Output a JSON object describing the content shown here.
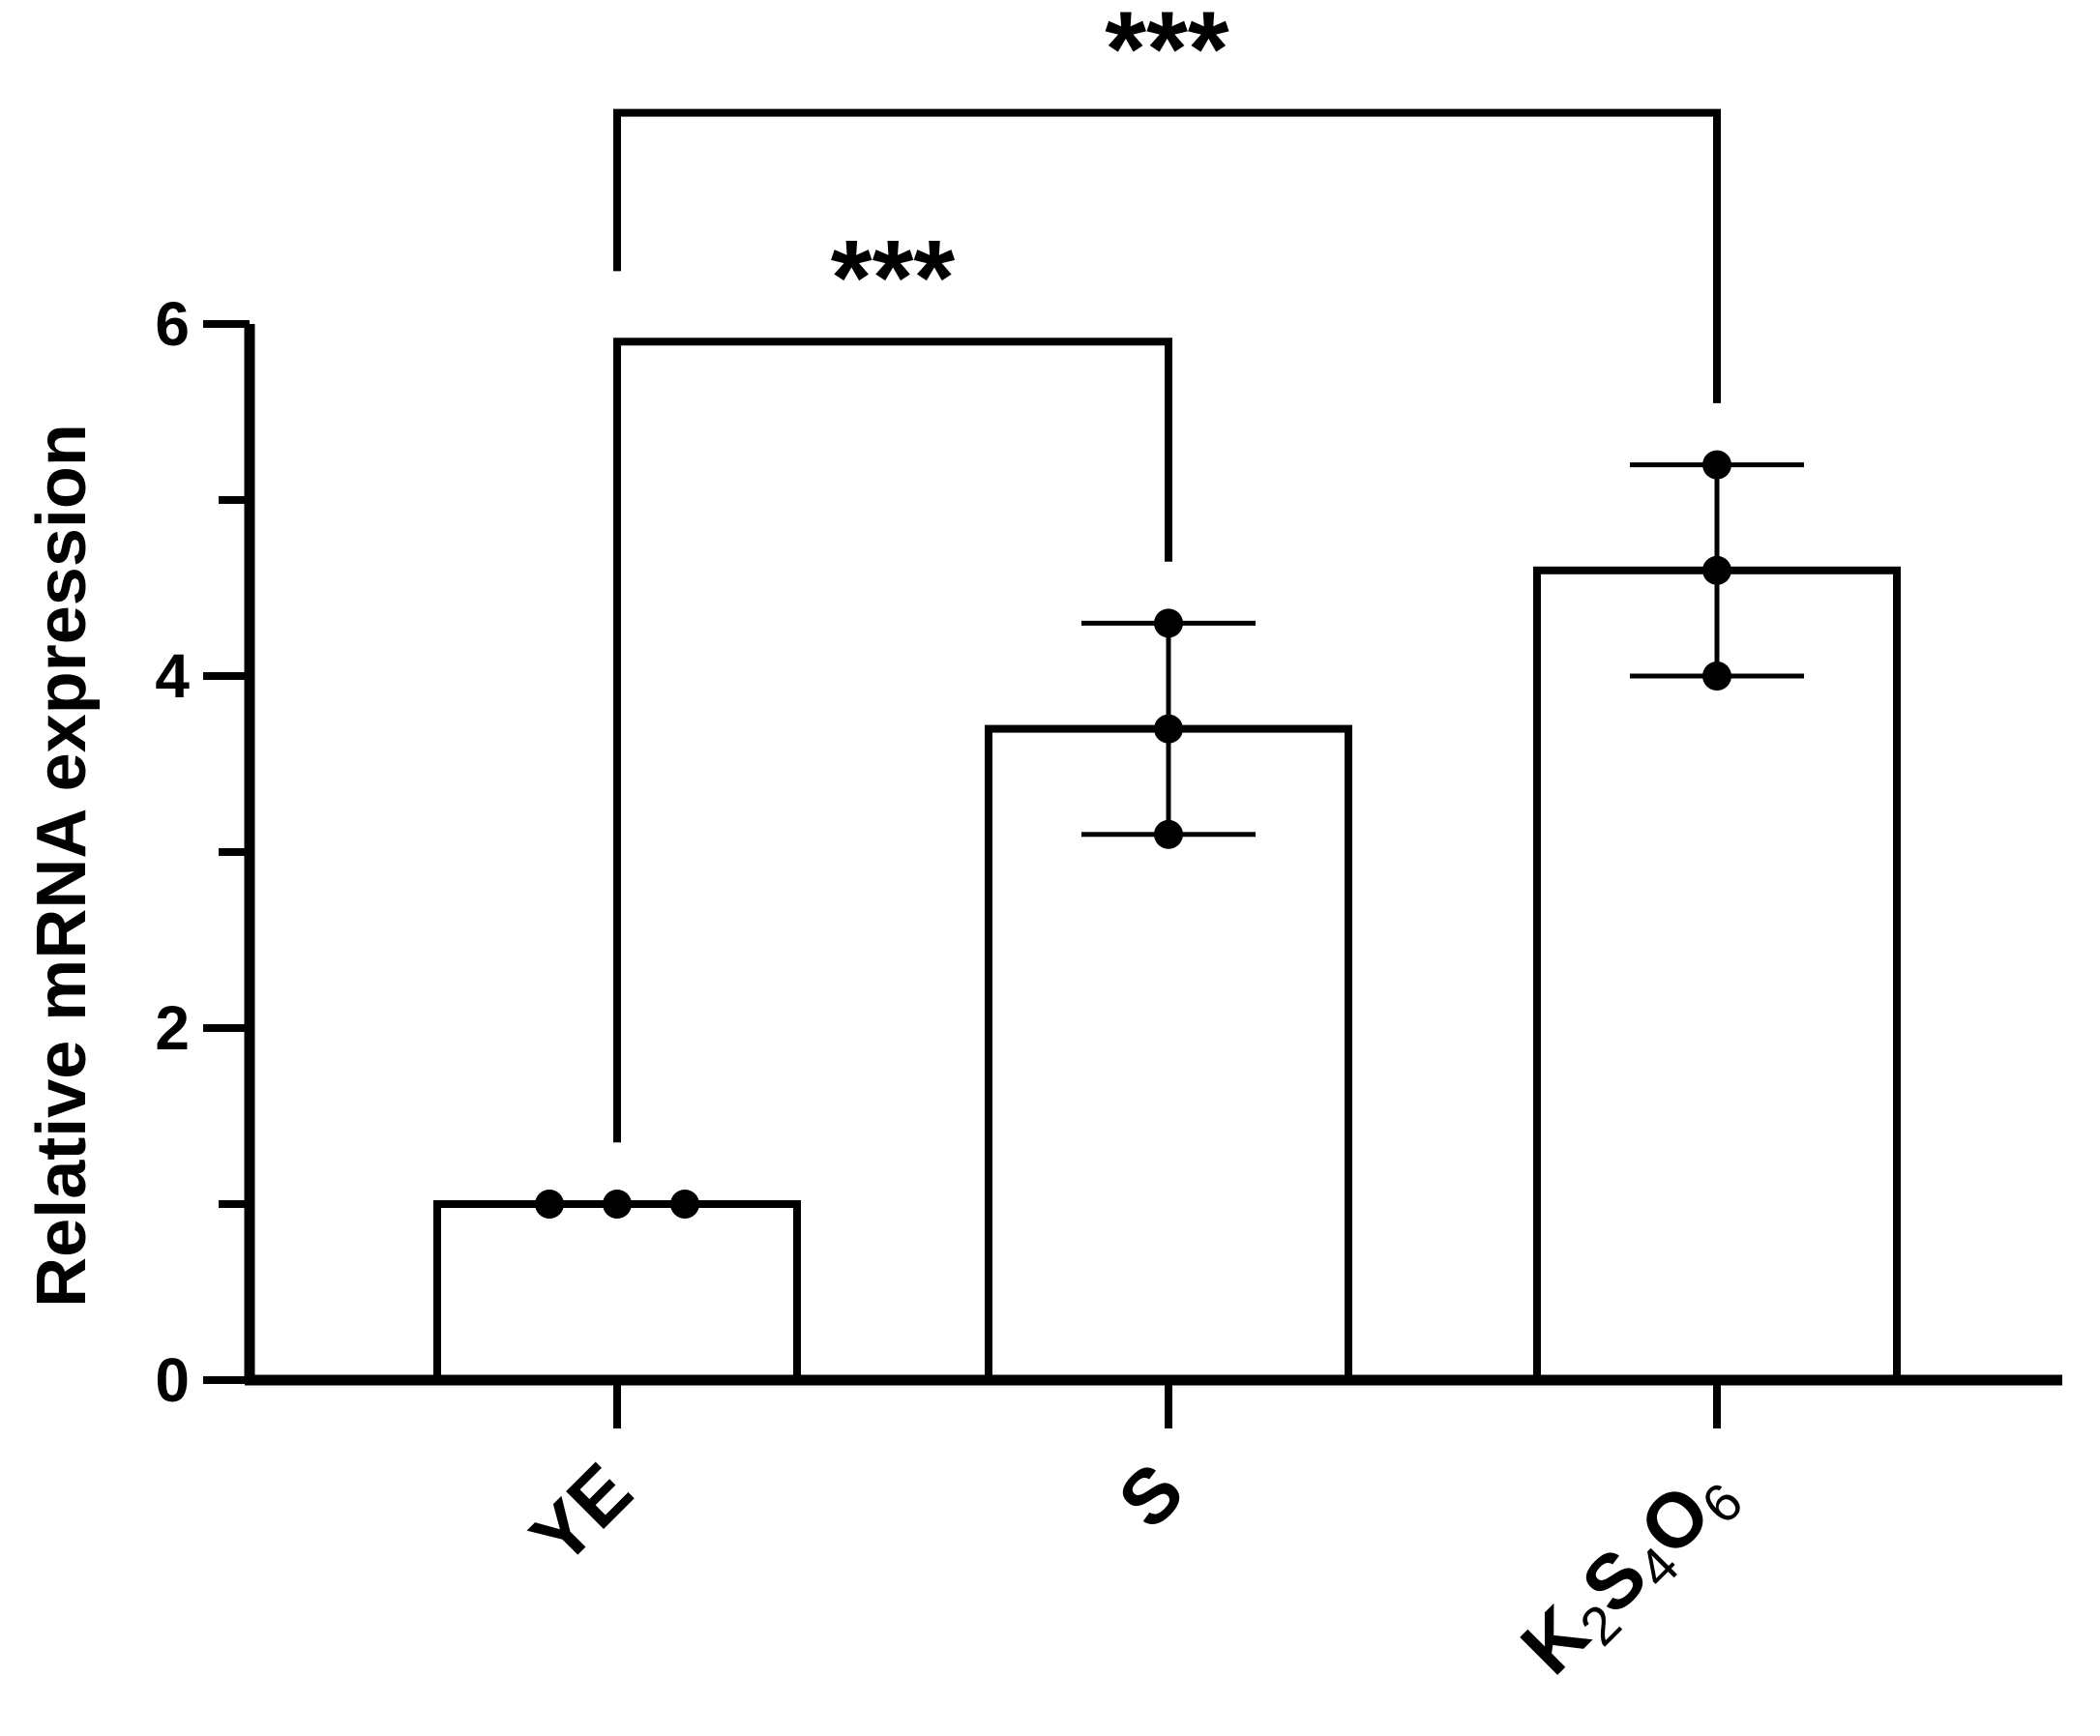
{
  "chart_data": {
    "type": "bar",
    "title": "",
    "xlabel": "",
    "ylabel": "Relative mRNA expression",
    "ylim": [
      0,
      6
    ],
    "yticks": [
      0,
      2,
      4,
      6
    ],
    "grid": false,
    "categories": [
      {
        "label": "YE",
        "subscripts": []
      },
      {
        "label": "S",
        "subscripts": []
      },
      {
        "label": "K2S4O6",
        "subscripts": [
          {
            "text": "K"
          },
          {
            "text": "2",
            "sub": true
          },
          {
            "text": "S"
          },
          {
            "text": "4",
            "sub": true
          },
          {
            "text": "O"
          },
          {
            "text": "6",
            "sub": true
          }
        ]
      }
    ],
    "values": [
      1.0,
      3.7,
      4.6
    ],
    "error_bars": [
      {
        "low": 1.0,
        "high": 1.0
      },
      {
        "low": 3.1,
        "high": 4.3
      },
      {
        "low": 4.0,
        "high": 5.2
      }
    ],
    "points": [
      [
        1.0,
        1.0,
        1.0
      ],
      [
        3.1,
        3.7,
        4.3
      ],
      [
        4.0,
        4.6,
        5.2
      ]
    ],
    "colors": {
      "bar_fill": "#ffffff",
      "bar_stroke": "#000000",
      "axis": "#000000",
      "point": "#000000",
      "errorbar": "#000000"
    },
    "significance": [
      {
        "from": 0,
        "to": 1,
        "label": "***"
      },
      {
        "from": 0,
        "to": 2,
        "label": "***"
      }
    ]
  }
}
